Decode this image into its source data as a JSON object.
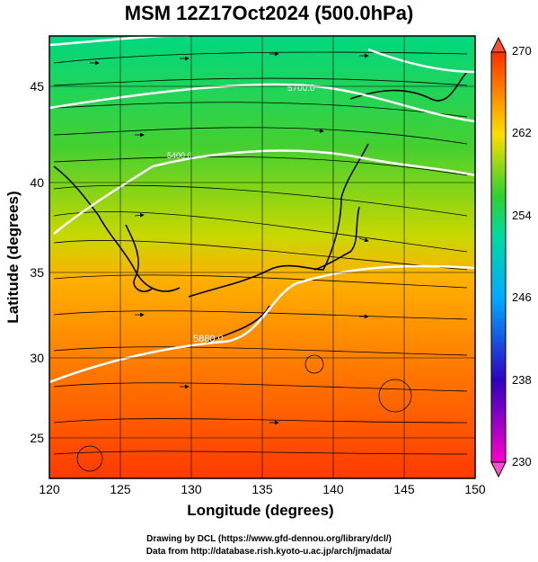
{
  "title": "MSM 12Z17Oct2024 (500.0hPa)",
  "x_axis": {
    "label": "Longitude (degrees)",
    "ticks": [
      "120",
      "125",
      "130",
      "135",
      "140",
      "145",
      "150"
    ]
  },
  "y_axis": {
    "label": "Latitude  (degrees)",
    "ticks": [
      "25",
      "30",
      "35",
      "40",
      "45"
    ]
  },
  "colorbar": {
    "ticks": [
      "270",
      "262",
      "254",
      "246",
      "238",
      "230"
    ]
  },
  "contour_labels": [
    "5700.0",
    "5880.0",
    "5400.0"
  ],
  "credits": {
    "line1": "Drawing by DCL (https://www.gfd-dennou.org/library/dcl/)",
    "line2": "Data from http://database.rish.kyoto-u.ac.jp/arch/jmadata/"
  },
  "colors": {
    "warm": "#ff3300",
    "mid": "#ffaa00",
    "green": "#33cc33",
    "cool": "#00ccaa"
  }
}
